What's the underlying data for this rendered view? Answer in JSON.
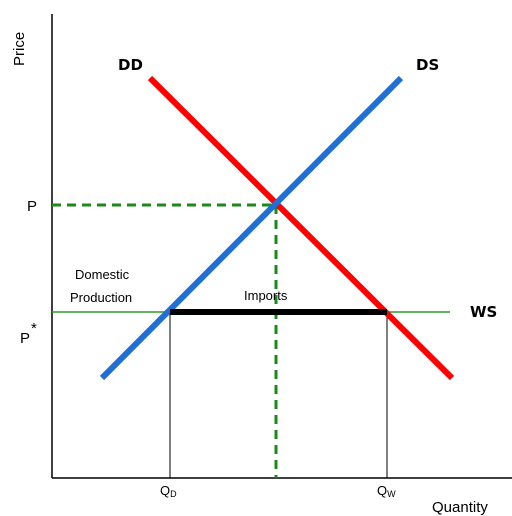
{
  "axes": {
    "y_label": "Price",
    "x_label": "Quantity"
  },
  "curves": {
    "demand_label": "DD",
    "supply_label": "DS",
    "world_supply_label": "WS",
    "demand_color": "#ff0000",
    "supply_color": "#1f6fd6",
    "world_supply_color": "#2a9d2a",
    "imports_color": "#000000",
    "autarky_guide_color": "#1a8a1a"
  },
  "price_ticks": {
    "autarky": "P",
    "world": "P",
    "world_marker": "*"
  },
  "quantity_ticks": {
    "domestic": "Q",
    "domestic_sub": "D",
    "world": "Q",
    "world_sub": "W"
  },
  "annotations": {
    "domestic_line1": "Domestic",
    "domestic_line2": "Production",
    "imports": "Imports"
  }
}
